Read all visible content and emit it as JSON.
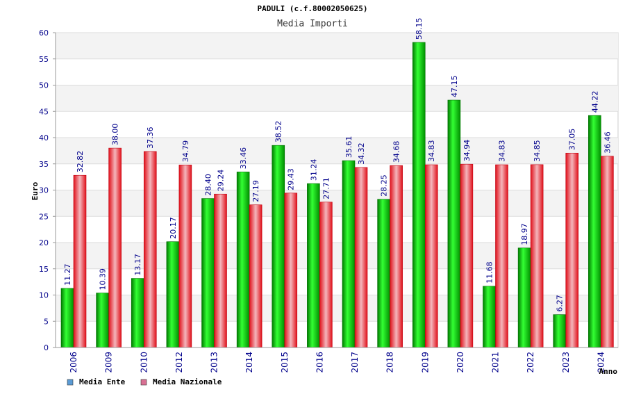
{
  "chart_data": {
    "type": "bar",
    "title": "PADULI (c.f.80002050625)",
    "subtitle": "Media Importi",
    "xlabel": "Anno",
    "ylabel": "Euro",
    "ylim": [
      0,
      60
    ],
    "yticks": [
      "0",
      "5",
      "10",
      "15",
      "20",
      "25",
      "30",
      "35",
      "40",
      "45",
      "50",
      "55",
      "60"
    ],
    "grid": true,
    "legend_position": "bottom-left",
    "categories": [
      "2006",
      "2009",
      "2010",
      "2012",
      "2013",
      "2014",
      "2015",
      "2016",
      "2017",
      "2018",
      "2019",
      "2020",
      "2021",
      "2022",
      "2023",
      "2024"
    ],
    "series": [
      {
        "name": "Media Ente",
        "color": "#00c000",
        "legend_color": "#5b9bd5",
        "values": [
          11.27,
          10.39,
          13.17,
          20.17,
          28.4,
          33.46,
          38.52,
          31.24,
          35.61,
          28.25,
          58.15,
          47.15,
          11.68,
          18.97,
          6.27,
          44.22
        ],
        "labels": [
          "11.27",
          "10.39",
          "13.17",
          "20.17",
          "28.40",
          "33.46",
          "38.52",
          "31.24",
          "35.61",
          "28.25",
          "58.15",
          "47.15",
          "11.68",
          "18.97",
          "6.27",
          "44.22"
        ]
      },
      {
        "name": "Media Nazionale",
        "color": "#e8101a",
        "legend_color": "#d87093",
        "values": [
          32.82,
          38.0,
          37.36,
          34.79,
          29.24,
          27.19,
          29.43,
          27.71,
          34.32,
          34.68,
          34.83,
          34.94,
          34.83,
          34.85,
          37.05,
          36.46
        ],
        "labels": [
          "32.82",
          "38.00",
          "37.36",
          "34.79",
          "29.24",
          "27.19",
          "29.43",
          "27.71",
          "34.32",
          "34.68",
          "34.83",
          "34.94",
          "34.83",
          "34.85",
          "37.05",
          "36.46"
        ]
      }
    ]
  }
}
